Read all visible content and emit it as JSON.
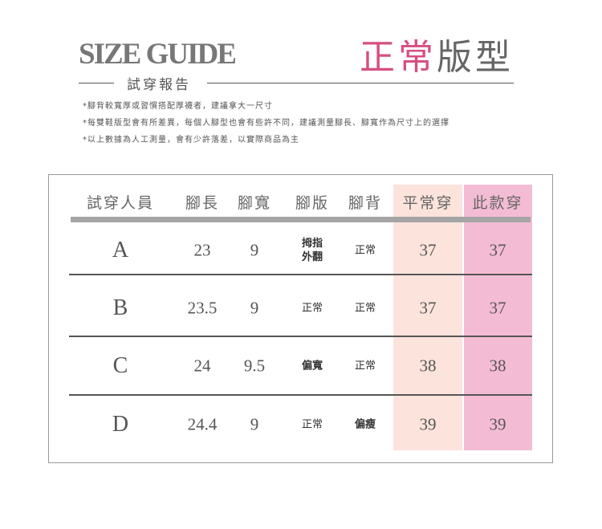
{
  "header": {
    "logo": "SIZE GUIDE",
    "subtitle": "試穿報告",
    "title_pink": "正常",
    "title_gray": "版型"
  },
  "notes": [
    "*腳背較寬厚或習慣搭配厚襪者，建議拿大一尺寸",
    "*每雙鞋版型會有所差異，每個人腳型也會有些許不同，建議測量腳長、腳寬作為尺寸上的選擇",
    "*以上數據為人工測量，會有少許落差，以實際商品為主"
  ],
  "colors": {
    "accent": "#d64f80",
    "usual_bg": "#fce3dc",
    "this_bg": "#f4bcd4"
  },
  "table": {
    "headers": [
      "試穿人員",
      "腳長",
      "腳寬",
      "腳版",
      "腳背",
      "平常穿",
      "此款穿"
    ],
    "rows": [
      {
        "person": "A",
        "length": "23",
        "width": "9",
        "shape": "拇指\n外翻",
        "instep": "正常",
        "usual": "37",
        "this": "37"
      },
      {
        "person": "B",
        "length": "23.5",
        "width": "9",
        "shape": "正常",
        "instep": "正常",
        "usual": "37",
        "this": "37"
      },
      {
        "person": "C",
        "length": "24",
        "width": "9.5",
        "shape": "偏寬",
        "instep": "正常",
        "usual": "38",
        "this": "38"
      },
      {
        "person": "D",
        "length": "24.4",
        "width": "9",
        "shape": "正常",
        "instep": "偏瘦",
        "usual": "39",
        "this": "39"
      }
    ]
  }
}
